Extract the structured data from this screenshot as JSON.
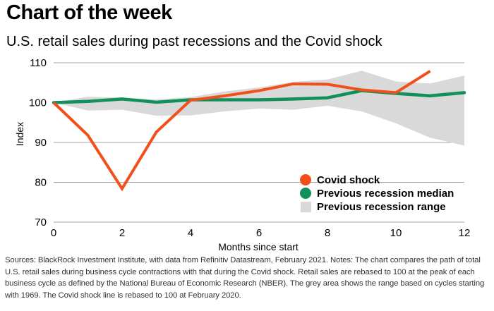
{
  "header": {
    "headline": "Chart of the week",
    "subtitle": "U.S. retail sales during past recessions and the Covid shock"
  },
  "footnote": "Sources: BlackRock Investment Institute, with data from Refinitiv Datastream, February 2021. Notes: The chart compares the path of total U.S. retail sales during business cycle contractions with that during the Covid shock. Retail sales are rebased to 100 at the peak of each business cycle as defined by the National Bureau of Economic Research (NBER). The grey area shows the range based on cycles starting with 1969. The Covid shock line is rebased to 100 at February 2020.",
  "colors": {
    "covid": "#f2501b",
    "median": "#12905c",
    "range": "#d9d9d9",
    "grid": "#a6a6a6"
  },
  "chart_data": {
    "type": "line",
    "xlabel": "Months since start",
    "ylabel": "Index",
    "xlim": [
      0,
      12
    ],
    "ylim": [
      70,
      110
    ],
    "xticks": [
      "0",
      "2",
      "4",
      "6",
      "8",
      "10",
      "12"
    ],
    "yticks": [
      "70",
      "80",
      "90",
      "100",
      "110"
    ],
    "grid": "horizontal",
    "legend_position": "bottom-right",
    "series": [
      {
        "name": "Covid shock",
        "x": [
          0,
          1,
          2,
          3,
          4,
          5,
          6,
          7,
          8,
          9,
          10,
          11
        ],
        "values": [
          100,
          91.8,
          78.4,
          92.6,
          100.6,
          101.7,
          103,
          104.7,
          104.6,
          103.2,
          102.5,
          107.9
        ]
      },
      {
        "name": "Previous recession median",
        "x": [
          0,
          1,
          2,
          3,
          4,
          5,
          6,
          7,
          8,
          9,
          10,
          11,
          12
        ],
        "values": [
          100,
          100.3,
          100.9,
          100.1,
          100.7,
          100.7,
          100.7,
          100.9,
          101.2,
          103,
          102.3,
          101.7,
          102.5
        ]
      },
      {
        "name": "Previous recession range",
        "x": [
          0,
          1,
          2,
          3,
          4,
          5,
          6,
          7,
          8,
          9,
          10,
          11,
          12
        ],
        "upper": [
          100,
          101.5,
          101.2,
          100.8,
          101.4,
          102.8,
          103.8,
          105.2,
          105.8,
          108,
          105.3,
          104.8,
          106.8
        ],
        "lower": [
          100,
          98,
          98.2,
          96.7,
          96.8,
          97.8,
          98.5,
          98.2,
          99.2,
          97.8,
          94.8,
          91.2,
          89.2
        ]
      }
    ]
  }
}
